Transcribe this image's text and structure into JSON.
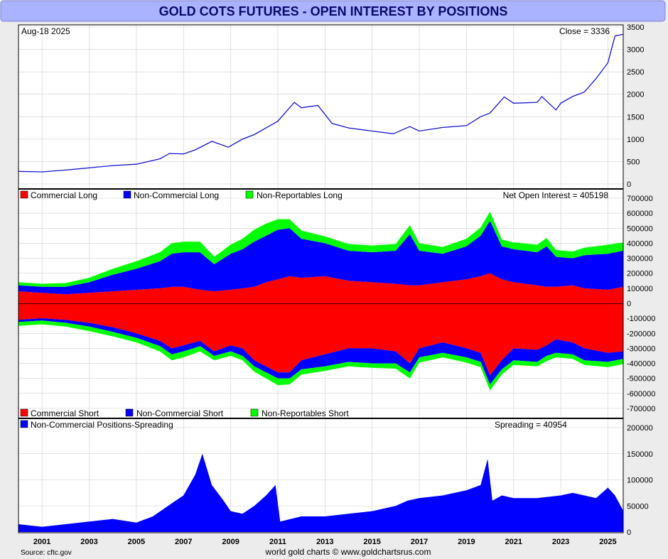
{
  "title": "GOLD COTS FUTURES - OPEN INTEREST BY POSITIONS",
  "source": "Source: cftc.gov",
  "credit": "world gold charts © www.goldchartsrus.com",
  "colors": {
    "price": "#1414d2",
    "commercial": "#ff0000",
    "noncommercial": "#0000ff",
    "nonreportable": "#00ff00",
    "spreading": "#0000ff",
    "title_bg": "#aab3ff",
    "grid": "#cfcfcf"
  },
  "x_axis": {
    "ticks": [
      "2001",
      "2003",
      "2005",
      "2007",
      "2009",
      "2011",
      "2013",
      "2015",
      "2017",
      "2019",
      "2021",
      "2023",
      "2025"
    ],
    "tick_values": [
      2001,
      2003,
      2005,
      2007,
      2009,
      2011,
      2013,
      2015,
      2017,
      2019,
      2021,
      2023,
      2025
    ],
    "range": [
      2000.0,
      2025.65
    ]
  },
  "chart_data": [
    {
      "type": "line",
      "panel": "price",
      "date_label": "Aug-18  2025",
      "close_label": "Close = 3336",
      "ylim": [
        0,
        3500
      ],
      "yticks": [
        "3500",
        "3000",
        "2500",
        "2000",
        "1500",
        "1000",
        "500",
        "0"
      ],
      "ytick_values": [
        3500,
        3000,
        2500,
        2000,
        1500,
        1000,
        500,
        0
      ],
      "x": [
        2000.0,
        2001.0,
        2002.0,
        2003.0,
        2004.0,
        2005.0,
        2006.0,
        2006.4,
        2007.0,
        2007.5,
        2008.2,
        2008.9,
        2009.5,
        2010.0,
        2010.5,
        2011.0,
        2011.7,
        2012.0,
        2012.7,
        2013.3,
        2014.0,
        2015.0,
        2015.9,
        2016.6,
        2017.0,
        2018.0,
        2019.0,
        2019.6,
        2020.0,
        2020.6,
        2021.0,
        2022.0,
        2022.2,
        2022.8,
        2023.0,
        2023.5,
        2024.0,
        2024.5,
        2025.0,
        2025.3,
        2025.65
      ],
      "y": [
        280,
        270,
        310,
        360,
        410,
        440,
        560,
        680,
        670,
        760,
        950,
        820,
        1000,
        1100,
        1250,
        1400,
        1820,
        1700,
        1750,
        1350,
        1250,
        1180,
        1120,
        1280,
        1180,
        1260,
        1300,
        1500,
        1580,
        1940,
        1800,
        1820,
        1950,
        1650,
        1800,
        1950,
        2050,
        2350,
        2700,
        3300,
        3336
      ]
    },
    {
      "type": "area",
      "panel": "longs",
      "legend": [
        "Commercial Long",
        "Non-Commercial Long",
        "Non-Reportables Long"
      ],
      "net_label": "Net Open Interest = 405198",
      "ylim": [
        -700000,
        700000
      ],
      "yticks": [
        "700000",
        "600000",
        "500000",
        "400000",
        "300000",
        "200000",
        "100000",
        "0",
        "-100000",
        "-200000",
        "-300000",
        "-400000",
        "-500000",
        "-600000",
        "-700000"
      ],
      "ytick_values": [
        700000,
        600000,
        500000,
        400000,
        300000,
        200000,
        100000,
        0,
        -100000,
        -200000,
        -300000,
        -400000,
        -500000,
        -600000,
        -700000
      ],
      "x": [
        2000.0,
        2001.0,
        2002.0,
        2003.0,
        2004.0,
        2005.0,
        2006.0,
        2006.5,
        2007.0,
        2007.7,
        2008.3,
        2009.0,
        2009.5,
        2010.0,
        2010.5,
        2011.0,
        2011.5,
        2012.0,
        2013.0,
        2014.0,
        2015.0,
        2016.0,
        2016.6,
        2017.0,
        2018.0,
        2019.0,
        2019.6,
        2020.0,
        2020.5,
        2021.0,
        2022.0,
        2022.4,
        2022.8,
        2023.5,
        2024.0,
        2025.0,
        2025.65
      ],
      "series": [
        {
          "name": "Commercial Long",
          "values": [
            80000,
            70000,
            60000,
            70000,
            80000,
            90000,
            100000,
            110000,
            110000,
            90000,
            80000,
            90000,
            100000,
            110000,
            140000,
            160000,
            180000,
            170000,
            180000,
            150000,
            140000,
            130000,
            120000,
            120000,
            140000,
            160000,
            180000,
            200000,
            160000,
            140000,
            120000,
            110000,
            110000,
            120000,
            100000,
            90000,
            110000
          ]
        },
        {
          "name": "Non-Commercial Long",
          "values": [
            40000,
            40000,
            50000,
            70000,
            110000,
            140000,
            180000,
            220000,
            230000,
            250000,
            180000,
            240000,
            260000,
            300000,
            310000,
            330000,
            320000,
            260000,
            220000,
            200000,
            200000,
            220000,
            340000,
            230000,
            190000,
            220000,
            270000,
            350000,
            220000,
            220000,
            220000,
            270000,
            200000,
            180000,
            220000,
            240000,
            240000
          ]
        },
        {
          "name": "Non-Reportables Long",
          "values": [
            20000,
            20000,
            25000,
            30000,
            40000,
            50000,
            60000,
            70000,
            70000,
            70000,
            50000,
            60000,
            70000,
            80000,
            80000,
            70000,
            60000,
            55000,
            45000,
            45000,
            45000,
            45000,
            60000,
            50000,
            45000,
            50000,
            55000,
            60000,
            45000,
            45000,
            50000,
            55000,
            45000,
            45000,
            50000,
            60000,
            55000
          ]
        }
      ]
    },
    {
      "type": "area",
      "panel": "shorts",
      "legend": [
        "Commercial Short",
        "Non-Commercial Short",
        "Non-Reportables Short"
      ],
      "x": [
        2000.0,
        2001.0,
        2002.0,
        2003.0,
        2004.0,
        2005.0,
        2006.0,
        2006.5,
        2007.0,
        2007.7,
        2008.3,
        2009.0,
        2009.5,
        2010.0,
        2010.5,
        2011.0,
        2011.5,
        2012.0,
        2013.0,
        2014.0,
        2015.0,
        2016.0,
        2016.6,
        2017.0,
        2018.0,
        2019.0,
        2019.6,
        2020.0,
        2020.5,
        2021.0,
        2022.0,
        2022.4,
        2022.8,
        2023.5,
        2024.0,
        2025.0,
        2025.65
      ],
      "series": [
        {
          "name": "Commercial Short",
          "values": [
            -110000,
            -100000,
            -110000,
            -130000,
            -160000,
            -200000,
            -250000,
            -300000,
            -280000,
            -250000,
            -320000,
            -280000,
            -300000,
            -380000,
            -420000,
            -460000,
            -460000,
            -380000,
            -340000,
            -300000,
            -300000,
            -320000,
            -400000,
            -300000,
            -260000,
            -300000,
            -330000,
            -480000,
            -380000,
            -300000,
            -310000,
            -280000,
            -240000,
            -260000,
            -300000,
            -330000,
            -320000
          ]
        },
        {
          "name": "Non-Commercial Short",
          "values": [
            -15000,
            -15000,
            -20000,
            -25000,
            -30000,
            -30000,
            -35000,
            -40000,
            -40000,
            -35000,
            -30000,
            -40000,
            -50000,
            -40000,
            -40000,
            -40000,
            -40000,
            -60000,
            -80000,
            -90000,
            -100000,
            -80000,
            -60000,
            -60000,
            -70000,
            -60000,
            -60000,
            -60000,
            -60000,
            -80000,
            -80000,
            -70000,
            -90000,
            -80000,
            -80000,
            -60000,
            -50000
          ]
        },
        {
          "name": "Non-Reportables Short",
          "values": [
            -25000,
            -25000,
            -25000,
            -30000,
            -30000,
            -30000,
            -35000,
            -40000,
            -40000,
            -35000,
            -30000,
            -30000,
            -30000,
            -35000,
            -40000,
            -45000,
            -40000,
            -35000,
            -30000,
            -30000,
            -30000,
            -35000,
            -40000,
            -35000,
            -30000,
            -35000,
            -35000,
            -40000,
            -35000,
            -30000,
            -30000,
            -35000,
            -30000,
            -30000,
            -30000,
            -35000,
            -35000
          ]
        }
      ]
    },
    {
      "type": "area",
      "panel": "spreading",
      "legend": [
        "Non-Commercial Positions-Spreading"
      ],
      "spread_label": "Spreading = 40954",
      "ylim": [
        0,
        200000
      ],
      "yticks": [
        "200000",
        "150000",
        "100000",
        "50000",
        "0"
      ],
      "ytick_values": [
        200000,
        150000,
        100000,
        50000,
        0
      ],
      "x": [
        2000.0,
        2001.0,
        2002.0,
        2003.0,
        2004.0,
        2005.0,
        2005.7,
        2006.5,
        2007.0,
        2007.5,
        2007.8,
        2008.2,
        2008.7,
        2009.0,
        2009.5,
        2010.0,
        2010.5,
        2010.9,
        2011.1,
        2012.0,
        2013.0,
        2014.0,
        2015.0,
        2016.0,
        2016.5,
        2017.0,
        2018.0,
        2019.0,
        2019.6,
        2019.9,
        2020.1,
        2020.5,
        2021.0,
        2022.0,
        2023.0,
        2023.5,
        2024.0,
        2024.5,
        2025.0,
        2025.3,
        2025.65
      ],
      "series": [
        {
          "name": "Non-Commercial Positions-Spreading",
          "values": [
            15000,
            10000,
            15000,
            20000,
            25000,
            18000,
            30000,
            55000,
            70000,
            110000,
            150000,
            90000,
            60000,
            40000,
            35000,
            50000,
            70000,
            90000,
            20000,
            30000,
            30000,
            35000,
            40000,
            50000,
            60000,
            65000,
            70000,
            80000,
            90000,
            140000,
            60000,
            70000,
            65000,
            65000,
            70000,
            75000,
            70000,
            65000,
            85000,
            70000,
            40954
          ]
        }
      ]
    }
  ]
}
